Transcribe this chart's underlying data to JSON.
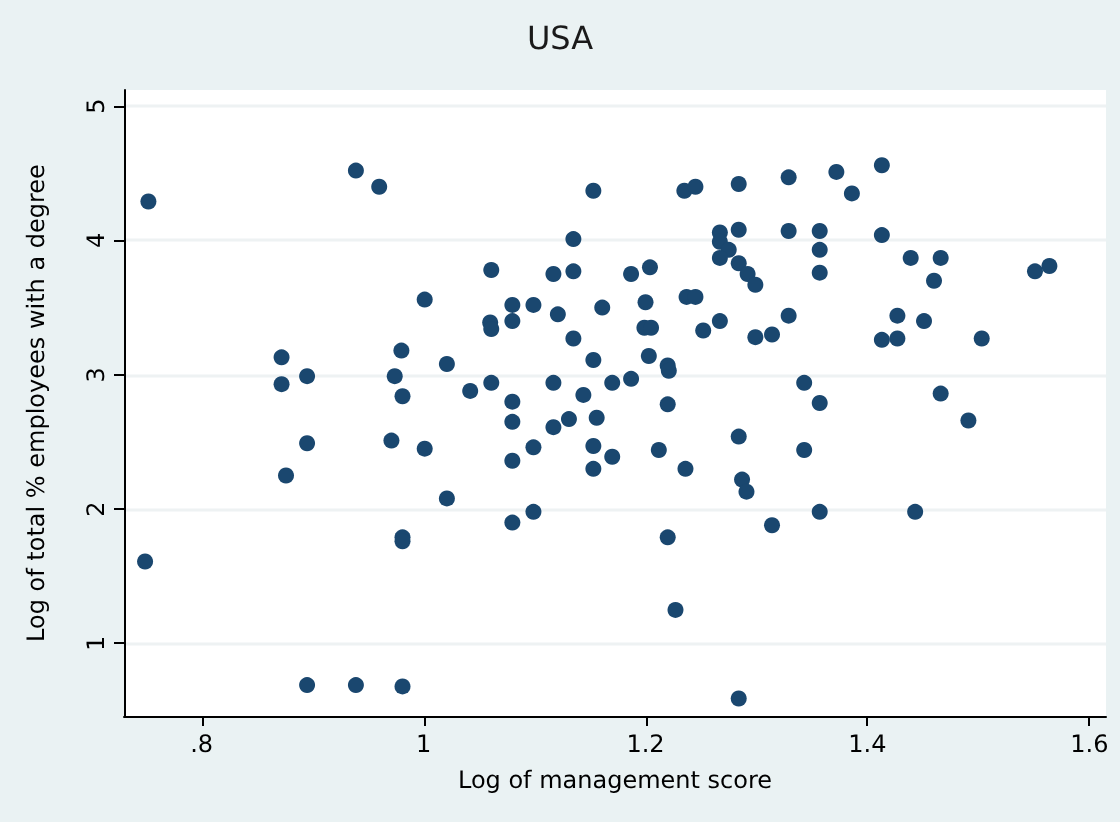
{
  "chart_data": {
    "type": "scatter",
    "title": "USA",
    "xlabel": "Log of management score",
    "ylabel": "Log of total % employees with a degree",
    "xlim": [
      0.73,
      1.615
    ],
    "ylim": [
      0.46,
      5.12
    ],
    "xticks": [
      {
        "value": 0.8,
        "label": ".8"
      },
      1,
      1.2,
      1.4,
      1.6
    ],
    "yticks": [
      1,
      2,
      3,
      4,
      5
    ],
    "grid": "y",
    "marker": "circle",
    "series": [
      {
        "color": "#1a476f",
        "x": [
          0.752,
          0.749,
          0.939,
          0.96,
          1.001,
          0.872,
          0.872,
          0.895,
          0.895,
          0.876,
          0.98,
          0.974,
          0.981,
          0.971,
          1.001,
          1.021,
          1.021,
          0.981,
          0.981,
          0.895,
          0.939,
          0.981,
          1.153,
          1.235,
          1.245,
          1.284,
          1.135,
          1.267,
          1.284,
          1.267,
          1.275,
          1.267,
          1.284,
          1.292,
          1.299,
          1.061,
          1.117,
          1.135,
          1.187,
          1.204,
          1.08,
          1.099,
          1.06,
          1.061,
          1.08,
          1.121,
          1.161,
          1.2,
          1.237,
          1.245,
          1.135,
          1.199,
          1.205,
          1.252,
          1.267,
          1.299,
          1.314,
          1.153,
          1.203,
          1.22,
          1.221,
          1.042,
          1.061,
          1.117,
          1.144,
          1.17,
          1.187,
          1.08,
          1.22,
          1.08,
          1.131,
          1.117,
          1.156,
          1.099,
          1.08,
          1.153,
          1.153,
          1.17,
          1.212,
          1.236,
          1.284,
          1.287,
          1.291,
          1.08,
          1.099,
          1.22,
          1.227,
          1.284,
          1.314,
          1.329,
          1.372,
          1.386,
          1.413,
          1.329,
          1.357,
          1.357,
          1.357,
          1.413,
          1.439,
          1.466,
          1.46,
          1.551,
          1.564,
          1.329,
          1.427,
          1.451,
          1.413,
          1.427,
          1.503,
          1.343,
          1.357,
          1.466,
          1.491,
          1.343,
          1.357,
          1.443
        ],
        "values": [
          4.29,
          1.61,
          4.52,
          4.4,
          3.56,
          3.13,
          2.93,
          2.99,
          2.49,
          2.25,
          3.18,
          2.99,
          2.84,
          2.51,
          2.45,
          3.08,
          2.08,
          1.79,
          1.76,
          0.69,
          0.69,
          0.68,
          4.37,
          4.37,
          4.4,
          4.42,
          4.01,
          4.06,
          4.08,
          3.99,
          3.93,
          3.87,
          3.83,
          3.75,
          3.67,
          3.78,
          3.75,
          3.77,
          3.75,
          3.8,
          3.52,
          3.52,
          3.39,
          3.34,
          3.4,
          3.45,
          3.5,
          3.54,
          3.58,
          3.58,
          3.27,
          3.35,
          3.35,
          3.33,
          3.4,
          3.28,
          3.3,
          3.11,
          3.14,
          3.07,
          3.03,
          2.88,
          2.94,
          2.94,
          2.85,
          2.94,
          2.97,
          2.8,
          2.78,
          2.65,
          2.67,
          2.61,
          2.68,
          2.46,
          2.36,
          2.47,
          2.3,
          2.39,
          2.44,
          2.3,
          2.54,
          2.22,
          2.13,
          1.9,
          1.98,
          1.79,
          1.25,
          0.59,
          1.88,
          4.47,
          4.51,
          4.35,
          4.56,
          4.07,
          4.07,
          3.93,
          3.76,
          4.04,
          3.87,
          3.87,
          3.7,
          3.77,
          3.81,
          3.44,
          3.44,
          3.4,
          3.26,
          3.27,
          3.27,
          2.94,
          2.79,
          2.86,
          2.66,
          2.44,
          1.98,
          1.98
        ]
      }
    ]
  }
}
